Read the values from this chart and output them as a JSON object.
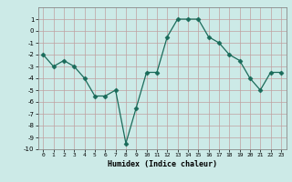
{
  "x": [
    0,
    1,
    2,
    3,
    4,
    5,
    6,
    7,
    8,
    9,
    10,
    11,
    12,
    13,
    14,
    15,
    16,
    17,
    18,
    19,
    20,
    21,
    22,
    23
  ],
  "y": [
    -2,
    -3,
    -2.5,
    -3,
    -4,
    -5.5,
    -5.5,
    -5,
    -9.5,
    -6.5,
    -3.5,
    -3.5,
    -0.5,
    1,
    1,
    1,
    -0.5,
    -1,
    -2,
    -2.5,
    -4,
    -5,
    -3.5,
    -3.5
  ],
  "xlabel": "Humidex (Indice chaleur)",
  "ylim": [
    -10,
    2
  ],
  "xlim": [
    -0.5,
    23.5
  ],
  "yticks": [
    1,
    0,
    -1,
    -2,
    -3,
    -4,
    -5,
    -6,
    -7,
    -8,
    -9,
    -10
  ],
  "xticks": [
    0,
    1,
    2,
    3,
    4,
    5,
    6,
    7,
    8,
    9,
    10,
    11,
    12,
    13,
    14,
    15,
    16,
    17,
    18,
    19,
    20,
    21,
    22,
    23
  ],
  "line_color": "#1a6b5a",
  "marker": "D",
  "marker_size": 2.5,
  "bg_color": "#cceae7",
  "grid_color": "#c0a0a0",
  "line_width": 0.9
}
